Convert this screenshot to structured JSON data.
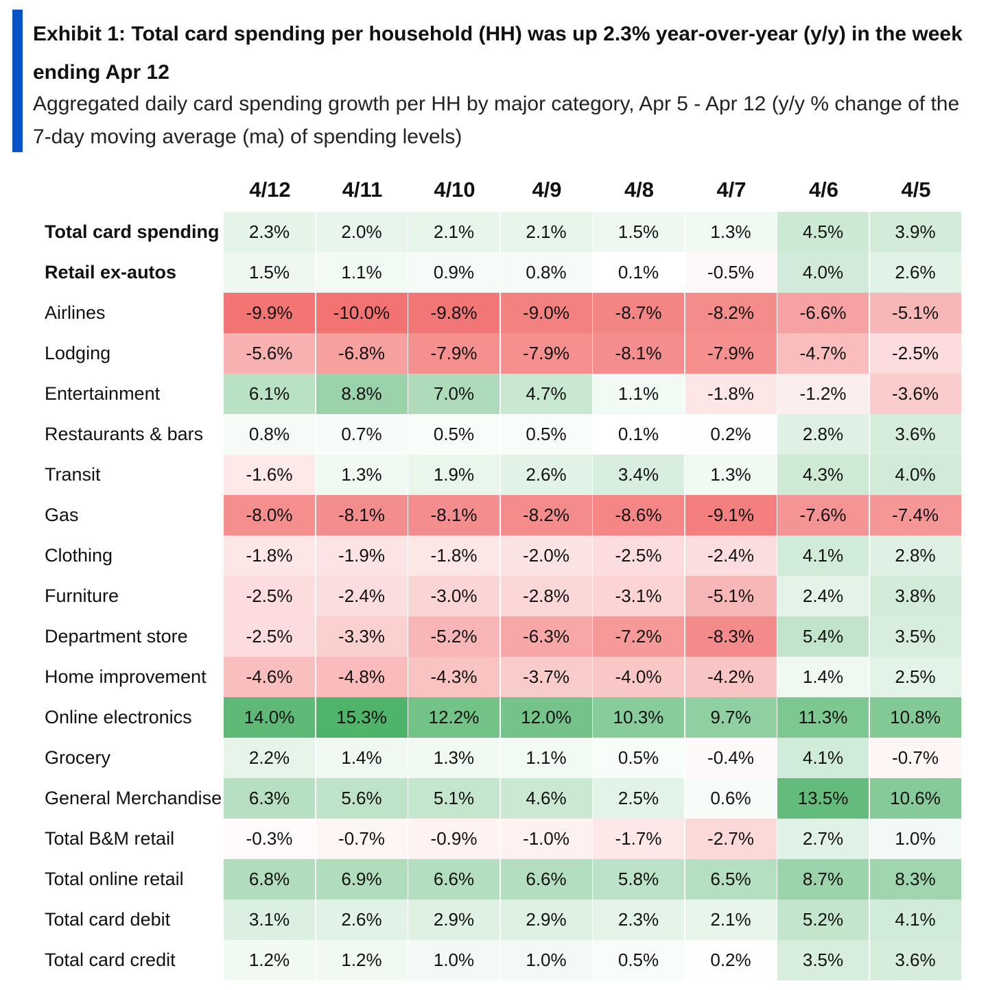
{
  "exhibit": {
    "title": "Exhibit 1: Total card spending per household (HH) was up 2.3% year-over-year (y/y) in the week ending Apr 12",
    "subtitle": "Aggregated daily card spending growth per HH by major category, Apr 5 - Apr 12 (y/y % change of the 7-day moving average (ma) of spending levels)",
    "accent_color": "#0a52c8",
    "negative_color": "#f0605f",
    "positive_color": "#4fb36a"
  },
  "chart_data": {
    "type": "table",
    "title": "Exhibit 1: Total card spending per household (HH) was up 2.3% year-over-year (y/y) in the week ending Apr 12",
    "subtitle": "Aggregated daily card spending growth per HH by major category, Apr 5 - Apr 12 (y/y % change of the 7-day moving average (ma) of spending levels)",
    "columns": [
      "4/12",
      "4/11",
      "4/10",
      "4/9",
      "4/8",
      "4/7",
      "4/6",
      "4/5"
    ],
    "rows": [
      {
        "label": "Total card spending",
        "bold": true,
        "values": [
          2.3,
          2.0,
          2.1,
          2.1,
          1.5,
          1.3,
          4.5,
          3.9
        ]
      },
      {
        "label": "Retail ex-autos",
        "bold": true,
        "values": [
          1.5,
          1.1,
          0.9,
          0.8,
          0.1,
          -0.5,
          4.0,
          2.6
        ]
      },
      {
        "label": "Airlines",
        "bold": false,
        "values": [
          -9.9,
          -10.0,
          -9.8,
          -9.0,
          -8.7,
          -8.2,
          -6.6,
          -5.1
        ]
      },
      {
        "label": "Lodging",
        "bold": false,
        "values": [
          -5.6,
          -6.8,
          -7.9,
          -7.9,
          -8.1,
          -7.9,
          -4.7,
          -2.5
        ]
      },
      {
        "label": "Entertainment",
        "bold": false,
        "values": [
          6.1,
          8.8,
          7.0,
          4.7,
          1.1,
          -1.8,
          -1.2,
          -3.6
        ]
      },
      {
        "label": "Restaurants & bars",
        "bold": false,
        "values": [
          0.8,
          0.7,
          0.5,
          0.5,
          0.1,
          0.2,
          2.8,
          3.6
        ]
      },
      {
        "label": "Transit",
        "bold": false,
        "values": [
          -1.6,
          1.3,
          1.9,
          2.6,
          3.4,
          1.3,
          4.3,
          4.0
        ]
      },
      {
        "label": "Gas",
        "bold": false,
        "values": [
          -8.0,
          -8.1,
          -8.1,
          -8.2,
          -8.6,
          -9.1,
          -7.6,
          -7.4
        ]
      },
      {
        "label": "Clothing",
        "bold": false,
        "values": [
          -1.8,
          -1.9,
          -1.8,
          -2.0,
          -2.5,
          -2.4,
          4.1,
          2.8
        ]
      },
      {
        "label": "Furniture",
        "bold": false,
        "values": [
          -2.5,
          -2.4,
          -3.0,
          -2.8,
          -3.1,
          -5.1,
          2.4,
          3.8
        ]
      },
      {
        "label": "Department store",
        "bold": false,
        "values": [
          -2.5,
          -3.3,
          -5.2,
          -6.3,
          -7.2,
          -8.3,
          5.4,
          3.5
        ]
      },
      {
        "label": "Home improvement",
        "bold": false,
        "values": [
          -4.6,
          -4.8,
          -4.3,
          -3.7,
          -4.0,
          -4.2,
          1.4,
          2.5
        ]
      },
      {
        "label": "Online electronics",
        "bold": false,
        "values": [
          14.0,
          15.3,
          12.2,
          12.0,
          10.3,
          9.7,
          11.3,
          10.8
        ]
      },
      {
        "label": "Grocery",
        "bold": false,
        "values": [
          2.2,
          1.4,
          1.3,
          1.1,
          0.5,
          -0.4,
          4.1,
          -0.7
        ]
      },
      {
        "label": "General Merchandise",
        "bold": false,
        "values": [
          6.3,
          5.6,
          5.1,
          4.6,
          2.5,
          0.6,
          13.5,
          10.6
        ]
      },
      {
        "label": "Total B&M retail",
        "bold": false,
        "values": [
          -0.3,
          -0.7,
          -0.9,
          -1.0,
          -1.7,
          -2.7,
          2.7,
          1.0
        ]
      },
      {
        "label": "Total online retail",
        "bold": false,
        "values": [
          6.8,
          6.9,
          6.6,
          6.6,
          5.8,
          6.5,
          8.7,
          8.3
        ]
      },
      {
        "label": "Total card debit",
        "bold": false,
        "values": [
          3.1,
          2.6,
          2.9,
          2.9,
          2.3,
          2.1,
          5.2,
          4.1
        ]
      },
      {
        "label": "Total card credit",
        "bold": false,
        "values": [
          1.2,
          1.2,
          1.0,
          1.0,
          0.5,
          0.2,
          3.5,
          3.6
        ]
      }
    ]
  }
}
